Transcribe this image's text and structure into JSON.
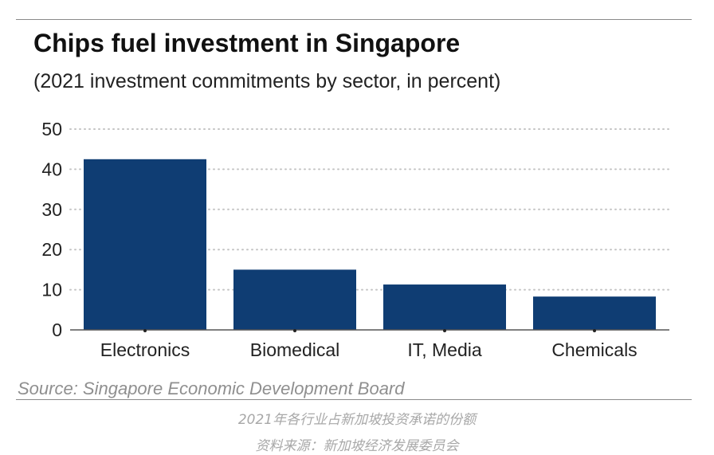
{
  "chart_data": {
    "type": "bar",
    "title": "Chips fuel investment in Singapore",
    "subtitle": "(2021 investment commitments by sector, in percent)",
    "categories": [
      "Electronics",
      "Biomedical",
      "IT, Media",
      "Chemicals"
    ],
    "values": [
      42.5,
      15,
      11.3,
      8.3
    ],
    "ylim": [
      0,
      50
    ],
    "yticks": [
      0,
      10,
      20,
      30,
      40,
      50
    ],
    "grid": true,
    "colors": {
      "bar": "#0f3d73",
      "grid": "#c4c4c4",
      "axis": "#555555"
    }
  },
  "source": "Source: Singapore Economic Development Board",
  "caption_line1": "2021年各行业占新加坡投资承诺的份额",
  "caption_line2": "资料来源：新加坡经济发展委员会"
}
